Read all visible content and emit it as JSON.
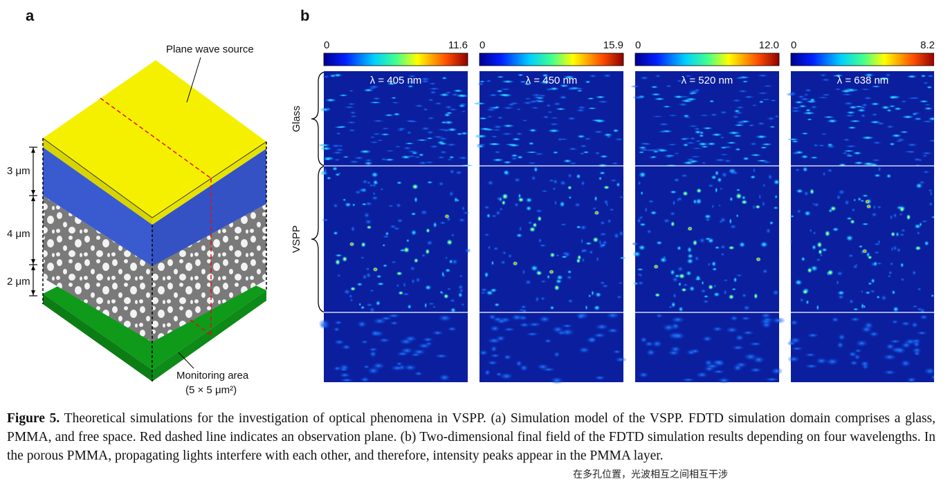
{
  "panel_a": {
    "label": "a",
    "source_label": "Plane wave source",
    "thickness_labels": [
      "3 μm",
      "4 μm",
      "2 μm"
    ],
    "monitor_label": "Monitoring area",
    "monitor_size": "(5 × 5 μm²)"
  },
  "panel_b": {
    "label": "b",
    "region_labels": [
      "Glass",
      "VSPP"
    ],
    "maps": [
      {
        "wavelength": "λ = 405 nm",
        "min": "0",
        "max": "11.6"
      },
      {
        "wavelength": "λ = 450 nm",
        "min": "0",
        "max": "15.9"
      },
      {
        "wavelength": "λ = 520 nm",
        "min": "0",
        "max": "12.0"
      },
      {
        "wavelength": "λ = 638 nm",
        "min": "0",
        "max": "8.2"
      }
    ]
  },
  "caption": {
    "figure_label": "Figure 5.",
    "text": " Theoretical simulations for the investigation of optical phenomena in VSPP. (a) Simulation model of the VSPP. FDTD simulation domain comprises a glass, PMMA, and free space. Red dashed line indicates an observation plane. (b) Two-dimensional final field of the FDTD simulation results depending on four wavelengths. In the porous PMMA, propagating lights interfere with each other, and therefore, intensity peaks appear in the PMMA layer."
  },
  "annotation": "在多孔位置，光波相互之间相互干涉",
  "colors": {
    "glass_layer": "#3a5bd0",
    "source_layer": "#f5f000",
    "monitor_layer": "#0f9a1a",
    "pmma_layer": "#7a7a7a",
    "field_background": "#0a1e9e"
  }
}
